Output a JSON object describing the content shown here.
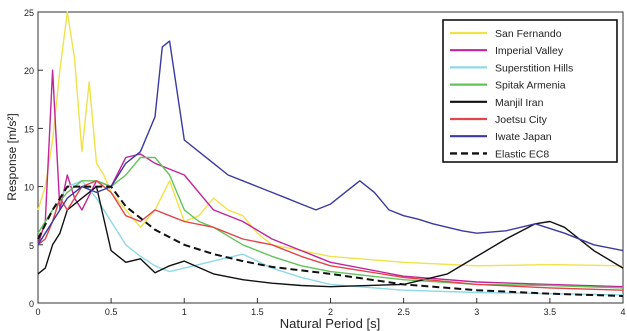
{
  "chart_data": {
    "type": "line",
    "title": "",
    "xlabel": "Natural Period [s]",
    "ylabel": "Response [m/s²]",
    "xlim": [
      0,
      4
    ],
    "ylim": [
      0,
      25
    ],
    "xticks": [
      "0",
      "0.5",
      "1",
      "1.5",
      "2",
      "2.5",
      "3",
      "3.5",
      "4"
    ],
    "yticks": [
      "0",
      "5",
      "10",
      "15",
      "20",
      "25"
    ],
    "legend_position": "top-right",
    "grid": false,
    "series": [
      {
        "name": "San Fernando",
        "color": "#f0e24a",
        "dash": "none",
        "x": [
          0,
          0.05,
          0.1,
          0.15,
          0.2,
          0.25,
          0.3,
          0.35,
          0.4,
          0.45,
          0.5,
          0.6,
          0.7,
          0.8,
          0.9,
          1.0,
          1.1,
          1.2,
          1.3,
          1.4,
          1.5,
          1.6,
          1.8,
          2.0,
          2.5,
          3.0,
          3.5,
          4.0
        ],
        "y": [
          8,
          10,
          14,
          20,
          25,
          21,
          13,
          19,
          12,
          11,
          9.5,
          8,
          6.5,
          8,
          10.5,
          7,
          7.5,
          9,
          8,
          7.5,
          6,
          5,
          4.5,
          4,
          3.5,
          3.2,
          3.3,
          3.2
        ]
      },
      {
        "name": "Imperial  Valley",
        "color": "#c0259a",
        "dash": "none",
        "x": [
          0,
          0.05,
          0.1,
          0.15,
          0.2,
          0.25,
          0.3,
          0.4,
          0.5,
          0.6,
          0.7,
          0.8,
          0.9,
          1.0,
          1.2,
          1.4,
          1.6,
          1.8,
          2.0,
          2.5,
          3.0,
          3.5,
          4.0
        ],
        "y": [
          5,
          7,
          20,
          8,
          11,
          9,
          8,
          10.5,
          10,
          12.5,
          12.8,
          12,
          11.5,
          11,
          8,
          7,
          5.5,
          4.5,
          3.5,
          2.3,
          1.8,
          1.6,
          1.4
        ]
      },
      {
        "name": "Superstition Hills",
        "color": "#8fd8e8",
        "dash": "none",
        "x": [
          0,
          0.05,
          0.1,
          0.15,
          0.2,
          0.3,
          0.4,
          0.5,
          0.6,
          0.7,
          0.8,
          0.9,
          1.0,
          1.2,
          1.4,
          1.6,
          1.8,
          2.0,
          2.5,
          3.0,
          3.5,
          4.0
        ],
        "y": [
          5,
          6,
          7,
          9,
          10,
          10.5,
          9,
          7,
          5,
          4,
          3.2,
          2.7,
          3,
          3.6,
          4.2,
          3,
          2.2,
          1.6,
          1.1,
          0.9,
          0.8,
          0.7
        ]
      },
      {
        "name": "Spitak Armenia",
        "color": "#62c35a",
        "dash": "none",
        "x": [
          0,
          0.05,
          0.1,
          0.2,
          0.3,
          0.4,
          0.5,
          0.6,
          0.7,
          0.8,
          0.9,
          1.0,
          1.1,
          1.2,
          1.4,
          1.6,
          1.8,
          2.0,
          2.5,
          3.0,
          3.5,
          4.0
        ],
        "y": [
          6,
          7,
          8,
          9.5,
          10.5,
          10.5,
          10,
          11,
          12.5,
          12.5,
          11,
          8,
          7,
          6.5,
          5,
          4,
          3.2,
          2.7,
          2,
          1.6,
          1.5,
          1.3
        ]
      },
      {
        "name": "Manjil Iran",
        "color": "#111111",
        "dash": "none",
        "x": [
          0,
          0.05,
          0.1,
          0.15,
          0.2,
          0.3,
          0.4,
          0.5,
          0.6,
          0.7,
          0.8,
          0.9,
          1.0,
          1.2,
          1.4,
          1.6,
          1.8,
          2.0,
          2.5,
          2.8,
          3.0,
          3.2,
          3.4,
          3.5,
          3.6,
          3.8,
          4.0
        ],
        "y": [
          2.5,
          3,
          5,
          6,
          8,
          9,
          10,
          4.5,
          3.5,
          3.8,
          2.6,
          3.2,
          3.6,
          2.5,
          2,
          1.7,
          1.5,
          1.4,
          1.6,
          2.5,
          4,
          5.5,
          6.8,
          7,
          6.5,
          4.5,
          3
        ]
      },
      {
        "name": "Joetsu City",
        "color": "#e0464b",
        "dash": "none",
        "x": [
          0,
          0.05,
          0.1,
          0.15,
          0.2,
          0.3,
          0.4,
          0.5,
          0.6,
          0.7,
          0.8,
          0.9,
          1.0,
          1.2,
          1.4,
          1.6,
          1.8,
          2.0,
          2.5,
          3.0,
          3.5,
          4.0
        ],
        "y": [
          5,
          5.5,
          7,
          9,
          8,
          10,
          10.5,
          9.5,
          7.5,
          7,
          8,
          7.5,
          7,
          6.5,
          5.5,
          5,
          4,
          3.2,
          2.2,
          1.6,
          1.3,
          1.1
        ]
      },
      {
        "name": "Iwate Japan",
        "color": "#3a3aa0",
        "dash": "none",
        "x": [
          0,
          0.1,
          0.2,
          0.3,
          0.4,
          0.5,
          0.6,
          0.7,
          0.8,
          0.85,
          0.9,
          1.0,
          1.1,
          1.2,
          1.3,
          1.4,
          1.5,
          1.6,
          1.7,
          1.8,
          1.9,
          2.0,
          2.1,
          2.2,
          2.3,
          2.4,
          2.5,
          2.6,
          2.7,
          2.8,
          2.9,
          3.0,
          3.2,
          3.4,
          3.6,
          3.8,
          4.0
        ],
        "y": [
          5,
          7,
          9,
          10,
          9.5,
          10,
          12,
          13,
          16,
          22,
          22.5,
          14,
          13,
          12,
          11,
          10.5,
          10,
          9.5,
          9,
          8.5,
          8,
          8.5,
          9.5,
          10.5,
          9.5,
          8,
          7.5,
          7.2,
          6.8,
          6.5,
          6.2,
          6,
          6.2,
          6.8,
          6,
          5,
          4.5
        ]
      },
      {
        "name": "Elastic EC8",
        "color": "#111111",
        "dash": "7,4",
        "x": [
          0,
          0.1,
          0.2,
          0.5,
          0.6,
          0.8,
          1.0,
          1.2,
          1.4,
          1.6,
          1.8,
          2.0,
          2.5,
          3.0,
          3.5,
          4.0
        ],
        "y": [
          5.5,
          8,
          10,
          10,
          8.3,
          6.3,
          5,
          4.2,
          3.6,
          3.1,
          2.8,
          2.5,
          1.6,
          1.1,
          0.8,
          0.6
        ]
      }
    ]
  }
}
